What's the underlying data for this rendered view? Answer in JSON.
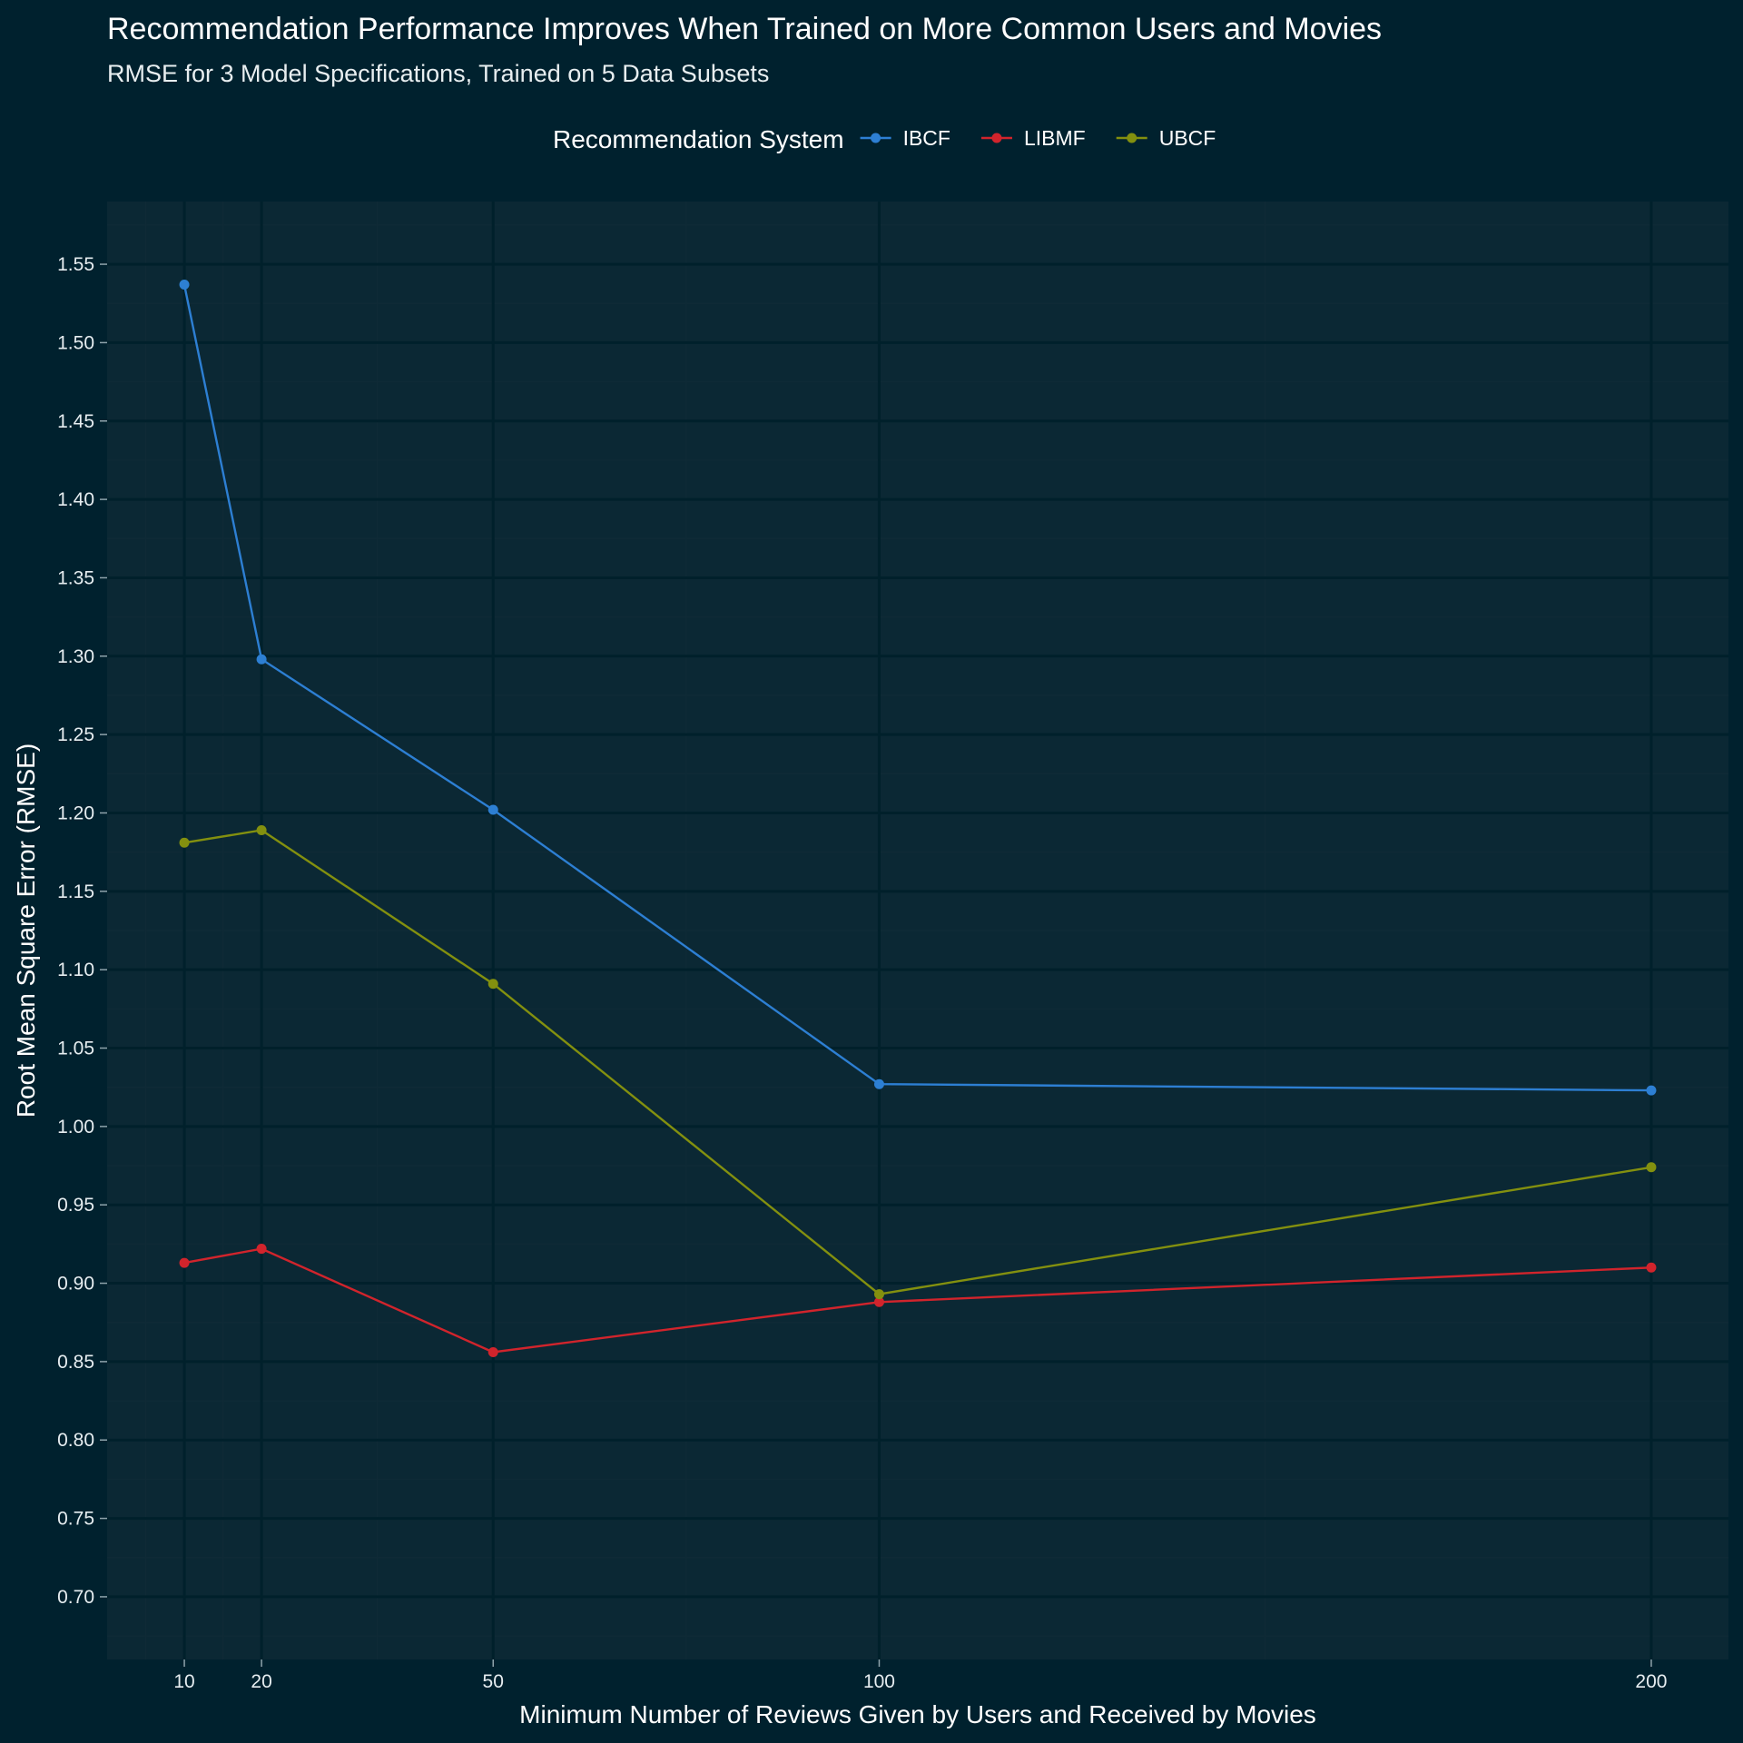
{
  "chart_data": {
    "type": "line",
    "title": "Recommendation Performance Improves When Trained on More Common Users and Movies",
    "subtitle": "RMSE for 3 Model Specifications, Trained on 5 Data Subsets",
    "xlabel": "Minimum Number of Reviews Given by Users and Received by Movies",
    "ylabel": "Root Mean Square Error (RMSE)",
    "legend_title": "Recommendation System",
    "legend_position": "top",
    "grid": true,
    "x": [
      10,
      20,
      50,
      100,
      200
    ],
    "x_ticks": [
      10,
      20,
      50,
      100,
      200
    ],
    "x_tick_labels": [
      "10",
      "20",
      "50",
      "100",
      "200"
    ],
    "xlim": [
      0,
      210
    ],
    "y_ticks": [
      0.7,
      0.75,
      0.8,
      0.85,
      0.9,
      0.95,
      1.0,
      1.05,
      1.1,
      1.15,
      1.2,
      1.25,
      1.3,
      1.35,
      1.4,
      1.45,
      1.5,
      1.55
    ],
    "y_tick_labels": [
      "0.70",
      "0.75",
      "0.80",
      "0.85",
      "0.90",
      "0.95",
      "1.00",
      "1.05",
      "1.10",
      "1.15",
      "1.20",
      "1.25",
      "1.30",
      "1.35",
      "1.40",
      "1.45",
      "1.50",
      "1.55"
    ],
    "ylim": [
      0.66,
      1.59
    ],
    "series": [
      {
        "name": "IBCF",
        "color": "#2d7fd3",
        "values": [
          1.537,
          1.298,
          1.202,
          1.027,
          1.023
        ]
      },
      {
        "name": "LIBMF",
        "color": "#d1242c",
        "values": [
          0.913,
          0.922,
          0.856,
          0.888,
          0.91
        ]
      },
      {
        "name": "UBCF",
        "color": "#83900f",
        "values": [
          1.181,
          1.189,
          1.091,
          0.893,
          0.974
        ]
      }
    ],
    "colors": {
      "background": "#00212e",
      "panel": "#0b2834",
      "grid_major": "#00202b",
      "grid_minor": "#0f2a36"
    }
  }
}
